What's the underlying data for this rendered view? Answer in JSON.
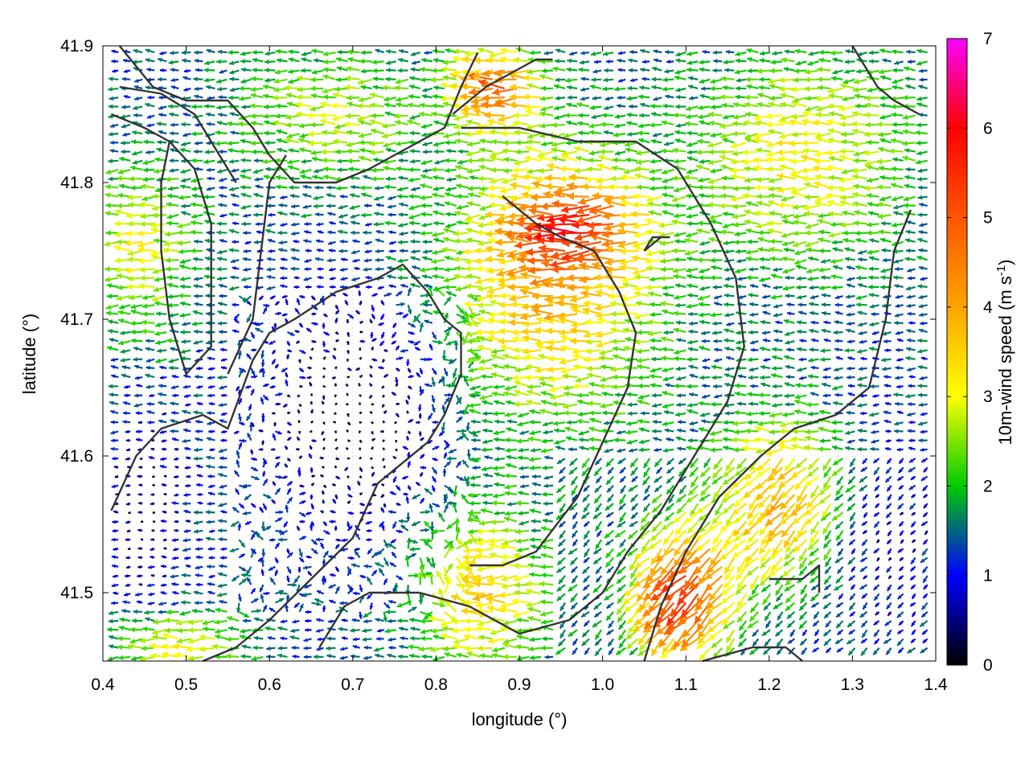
{
  "chart_data": {
    "type": "vector-field",
    "xlabel": "longitude (°)",
    "ylabel": "latitude (°)",
    "xlim": [
      0.4,
      1.4
    ],
    "ylim": [
      41.45,
      41.9
    ],
    "x_ticks": [
      0.4,
      0.5,
      0.6,
      0.7,
      0.8,
      0.9,
      1.0,
      1.1,
      1.2,
      1.3,
      1.4
    ],
    "x_tick_labels": [
      "0.4",
      "0.5",
      "0.6",
      "0.7",
      "0.8",
      "0.9",
      "1.0",
      "1.1",
      "1.2",
      "1.3",
      "1.4"
    ],
    "y_ticks": [
      41.5,
      41.6,
      41.7,
      41.8,
      41.9
    ],
    "y_tick_labels": [
      "41.5",
      "41.6",
      "41.7",
      "41.8",
      "41.9"
    ],
    "colorbar": {
      "label_main": "10m-wind speed (m s",
      "label_sup": "-1",
      "label_close": ")",
      "range": [
        0,
        7
      ],
      "ticks": [
        0,
        1,
        2,
        3,
        4,
        5,
        6,
        7
      ],
      "tick_labels": [
        "0",
        "1",
        "2",
        "3",
        "4",
        "5",
        "6",
        "7"
      ],
      "palette": [
        "#000000",
        "#0000ff",
        "#00cc00",
        "#ffff00",
        "#ffa500",
        "#ff0000",
        "#ff00ff"
      ]
    },
    "grid": "dotted",
    "regions": [
      {
        "name": "wind-maximum-north",
        "center": [
          0.88,
          41.865
        ],
        "speed": 5.6
      },
      {
        "name": "wind-band-west",
        "center": [
          0.9,
          41.78
        ],
        "speed": 5.0
      },
      {
        "name": "wind-maximum-southeast",
        "center": [
          1.1,
          41.5
        ],
        "speed": 6.5
      }
    ],
    "contours": [
      [
        [
          0.42,
          41.9
        ],
        [
          0.46,
          41.87
        ],
        [
          0.5,
          41.86
        ],
        [
          0.55,
          41.86
        ],
        [
          0.58,
          41.84
        ],
        [
          0.6,
          41.82
        ],
        [
          0.63,
          41.8
        ],
        [
          0.68,
          41.8
        ],
        [
          0.72,
          41.81
        ],
        [
          0.78,
          41.83
        ],
        [
          0.81,
          41.84
        ],
        [
          0.83,
          41.87
        ],
        [
          0.85,
          41.895
        ]
      ],
      [
        [
          0.42,
          41.87
        ],
        [
          0.47,
          41.865
        ],
        [
          0.51,
          41.85
        ],
        [
          0.54,
          41.82
        ],
        [
          0.56,
          41.8
        ]
      ],
      [
        [
          0.41,
          41.85
        ],
        [
          0.45,
          41.84
        ],
        [
          0.48,
          41.83
        ],
        [
          0.51,
          41.81
        ],
        [
          0.53,
          41.77
        ],
        [
          0.53,
          41.73
        ],
        [
          0.53,
          41.68
        ],
        [
          0.5,
          41.66
        ],
        [
          0.48,
          41.7
        ],
        [
          0.47,
          41.75
        ],
        [
          0.47,
          41.8
        ],
        [
          0.48,
          41.83
        ]
      ],
      [
        [
          0.55,
          41.66
        ],
        [
          0.58,
          41.7
        ],
        [
          0.59,
          41.75
        ],
        [
          0.6,
          41.8
        ],
        [
          0.62,
          41.82
        ]
      ],
      [
        [
          0.41,
          41.56
        ],
        [
          0.44,
          41.6
        ],
        [
          0.47,
          41.62
        ],
        [
          0.52,
          41.63
        ],
        [
          0.55,
          41.62
        ],
        [
          0.58,
          41.67
        ],
        [
          0.6,
          41.69
        ],
        [
          0.63,
          41.7
        ],
        [
          0.68,
          41.72
        ],
        [
          0.73,
          41.73
        ],
        [
          0.76,
          41.74
        ],
        [
          0.79,
          41.72
        ],
        [
          0.81,
          41.7
        ],
        [
          0.83,
          41.69
        ],
        [
          0.83,
          41.66
        ],
        [
          0.81,
          41.63
        ],
        [
          0.79,
          41.61
        ],
        [
          0.73,
          41.58
        ],
        [
          0.7,
          41.54
        ],
        [
          0.65,
          41.51
        ],
        [
          0.6,
          41.48
        ],
        [
          0.56,
          41.46
        ],
        [
          0.52,
          41.45
        ]
      ],
      [
        [
          0.82,
          41.85
        ],
        [
          0.84,
          41.86
        ],
        [
          0.86,
          41.87
        ],
        [
          0.89,
          41.88
        ],
        [
          0.92,
          41.89
        ],
        [
          0.94,
          41.89
        ]
      ],
      [
        [
          0.83,
          41.84
        ],
        [
          0.9,
          41.84
        ],
        [
          0.97,
          41.83
        ],
        [
          1.04,
          41.83
        ],
        [
          1.09,
          41.81
        ],
        [
          1.13,
          41.77
        ],
        [
          1.16,
          41.73
        ],
        [
          1.17,
          41.68
        ],
        [
          1.15,
          41.64
        ],
        [
          1.11,
          41.6
        ],
        [
          1.07,
          41.56
        ],
        [
          1.03,
          41.53
        ],
        [
          1.0,
          41.5
        ],
        [
          0.96,
          41.48
        ],
        [
          0.9,
          41.47
        ],
        [
          0.84,
          41.49
        ],
        [
          0.78,
          41.5
        ],
        [
          0.72,
          41.5
        ],
        [
          0.69,
          41.49
        ],
        [
          0.66,
          41.46
        ]
      ],
      [
        [
          0.88,
          41.79
        ],
        [
          0.92,
          41.77
        ],
        [
          0.95,
          41.76
        ],
        [
          0.99,
          41.75
        ],
        [
          1.02,
          41.72
        ],
        [
          1.04,
          41.69
        ],
        [
          1.03,
          41.65
        ],
        [
          1.0,
          41.61
        ],
        [
          0.97,
          41.57
        ],
        [
          0.92,
          41.53
        ],
        [
          0.88,
          41.52
        ],
        [
          0.84,
          41.52
        ]
      ],
      [
        [
          1.05,
          41.45
        ],
        [
          1.07,
          41.49
        ],
        [
          1.1,
          41.53
        ],
        [
          1.14,
          41.57
        ],
        [
          1.19,
          41.6
        ],
        [
          1.23,
          41.62
        ],
        [
          1.28,
          41.63
        ],
        [
          1.32,
          41.65
        ],
        [
          1.34,
          41.7
        ],
        [
          1.35,
          41.75
        ],
        [
          1.37,
          41.78
        ]
      ],
      [
        [
          1.12,
          41.45
        ],
        [
          1.18,
          41.46
        ],
        [
          1.22,
          41.46
        ],
        [
          1.24,
          41.45
        ]
      ],
      [
        [
          1.3,
          41.9
        ],
        [
          1.33,
          41.87
        ],
        [
          1.35,
          41.86
        ],
        [
          1.38,
          41.85
        ]
      ],
      [
        [
          1.2,
          41.51
        ],
        [
          1.24,
          41.51
        ],
        [
          1.26,
          41.52
        ],
        [
          1.26,
          41.5
        ]
      ],
      [
        [
          1.05,
          41.75
        ],
        [
          1.07,
          41.76
        ],
        [
          1.08,
          41.76
        ],
        [
          1.06,
          41.76
        ],
        [
          1.05,
          41.75
        ]
      ]
    ]
  }
}
